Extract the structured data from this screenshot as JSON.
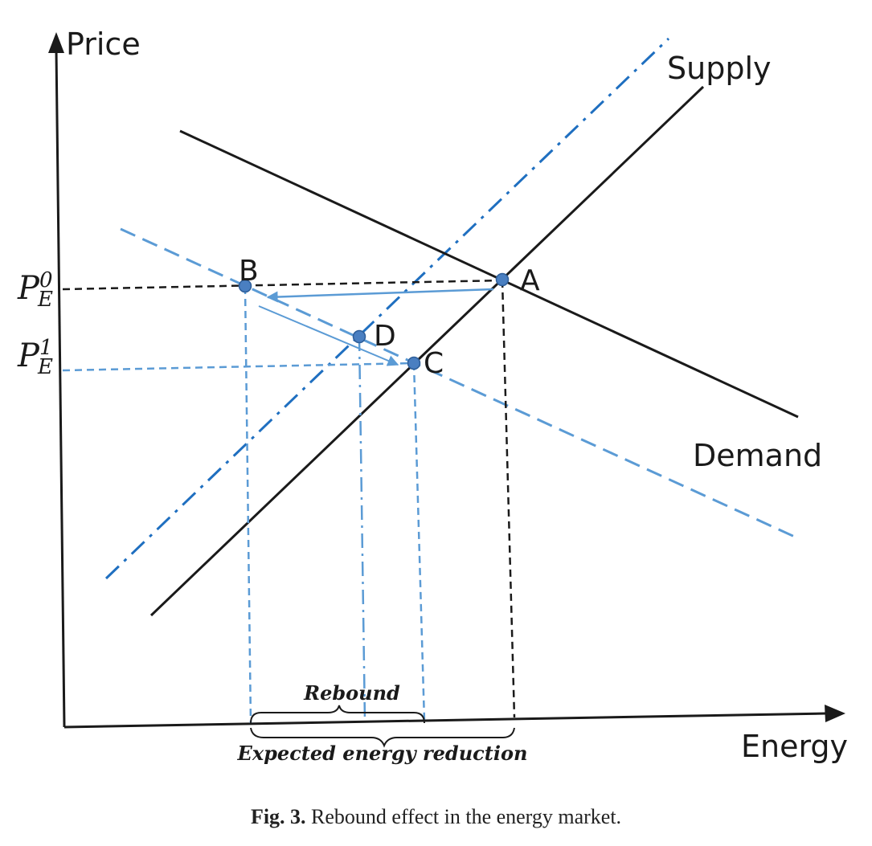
{
  "axes": {
    "y_label": "Price",
    "x_label": "Energy"
  },
  "curves": {
    "supply_label": "Supply",
    "demand_label": "Demand"
  },
  "price_levels": {
    "p0_base": "P",
    "p0_sub": "E",
    "p0_sup": "0",
    "p1_base": "P",
    "p1_sub": "E",
    "p1_sup": "1"
  },
  "points": {
    "a": "A",
    "b": "B",
    "c": "C",
    "d": "D"
  },
  "braces": {
    "rebound": "Rebound",
    "expected": "Expected energy reduction"
  },
  "caption": {
    "prefix": "Fig. 3.",
    "text": " Rebound effect in the energy market."
  },
  "colors": {
    "black": "#1a1a1a",
    "light_blue": "#5b9bd5",
    "mid_blue": "#1f6fc0",
    "point_fill": "#4a7fc1"
  }
}
